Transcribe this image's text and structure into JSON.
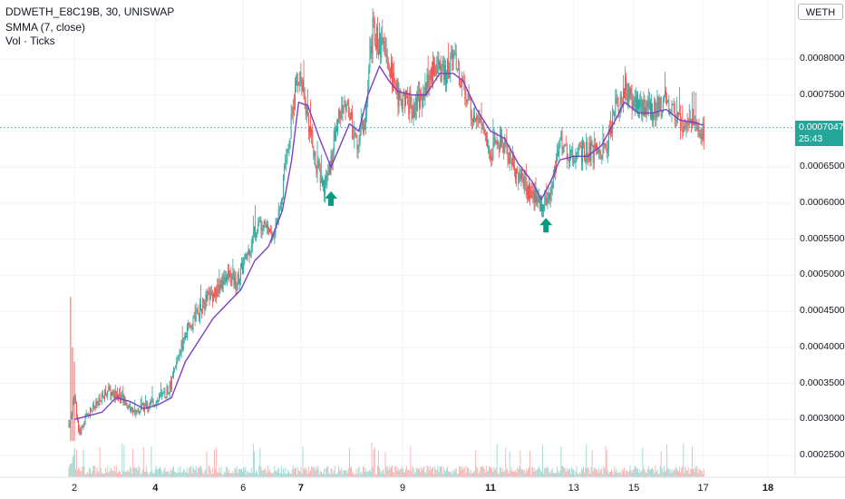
{
  "header": {
    "symbol_line": "DDWETH_E8C19B, 30, UNISWAP",
    "indicator_line": "SMMA (7, close)",
    "volume_line": "Vol · Ticks"
  },
  "currency_button": "WETH",
  "last_price": {
    "value": "0.0007047",
    "countdown": "25:43"
  },
  "colors": {
    "up": "#26a69a",
    "down": "#ef5350",
    "smma": "#7b3fc4",
    "arrow": "#089981",
    "grid": "#f0f3fa"
  },
  "icons": [
    "up-arrow-icon",
    "up-arrow-icon"
  ],
  "y_axis_labels": [
    "0.0008000",
    "0.0007500",
    "0.0006500",
    "0.0006000",
    "0.0005500",
    "0.0005000",
    "0.0004500",
    "0.0004000",
    "0.0003500",
    "0.0003000",
    "0.0002500"
  ],
  "x_axis_labels": [
    {
      "text": "2",
      "bold": false
    },
    {
      "text": "4",
      "bold": true
    },
    {
      "text": "6",
      "bold": false
    },
    {
      "text": "7",
      "bold": true
    },
    {
      "text": "9",
      "bold": false
    },
    {
      "text": "11",
      "bold": true
    },
    {
      "text": "13",
      "bold": false
    },
    {
      "text": "15",
      "bold": false
    },
    {
      "text": "17",
      "bold": false
    },
    {
      "text": "18",
      "bold": true
    }
  ],
  "chart_data": {
    "type": "candlestick",
    "ylim": [
      0.00022,
      0.00086
    ],
    "xlim": [
      1.6,
      18.9
    ],
    "series_points": [
      [
        1.9,
        0.00029
      ],
      [
        2.0,
        0.00034
      ],
      [
        2.1,
        0.00028
      ],
      [
        2.3,
        0.00031
      ],
      [
        2.5,
        0.00032
      ],
      [
        2.7,
        0.00034
      ],
      [
        3.0,
        0.00033
      ],
      [
        3.3,
        0.00031
      ],
      [
        3.6,
        0.00032
      ],
      [
        3.9,
        0.00033
      ],
      [
        4.1,
        0.00035
      ],
      [
        4.3,
        0.0004
      ],
      [
        4.5,
        0.00043
      ],
      [
        4.7,
        0.00045
      ],
      [
        4.9,
        0.00047
      ],
      [
        5.1,
        0.00048
      ],
      [
        5.3,
        0.0005
      ],
      [
        5.5,
        0.00049
      ],
      [
        5.7,
        0.00052
      ],
      [
        5.9,
        0.00056
      ],
      [
        6.1,
        0.00058
      ],
      [
        6.3,
        0.00055
      ],
      [
        6.5,
        0.00062
      ],
      [
        6.7,
        0.00072
      ],
      [
        6.85,
        0.00078
      ],
      [
        7.0,
        0.00074
      ],
      [
        7.2,
        0.00066
      ],
      [
        7.4,
        0.00062
      ],
      [
        7.55,
        0.00066
      ],
      [
        7.7,
        0.00072
      ],
      [
        7.9,
        0.00074
      ],
      [
        8.1,
        0.00068
      ],
      [
        8.3,
        0.00072
      ],
      [
        8.45,
        0.00084
      ],
      [
        8.6,
        0.00082
      ],
      [
        8.8,
        0.00079
      ],
      [
        9.0,
        0.00075
      ],
      [
        9.2,
        0.00074
      ],
      [
        9.4,
        0.00073
      ],
      [
        9.6,
        0.00076
      ],
      [
        9.8,
        0.00079
      ],
      [
        10.0,
        0.00078
      ],
      [
        10.2,
        0.0008
      ],
      [
        10.4,
        0.00076
      ],
      [
        10.6,
        0.00073
      ],
      [
        10.8,
        0.00071
      ],
      [
        11.0,
        0.00067
      ],
      [
        11.2,
        0.00069
      ],
      [
        11.5,
        0.00065
      ],
      [
        11.7,
        0.00063
      ],
      [
        11.9,
        0.00061
      ],
      [
        12.1,
        0.0006
      ],
      [
        12.3,
        0.00061
      ],
      [
        12.5,
        0.00069
      ],
      [
        12.7,
        0.00066
      ],
      [
        12.9,
        0.00067
      ],
      [
        13.2,
        0.00067
      ],
      [
        13.5,
        0.00068
      ],
      [
        13.7,
        0.00073
      ],
      [
        13.9,
        0.00076
      ],
      [
        14.1,
        0.00074
      ],
      [
        14.3,
        0.00073
      ],
      [
        14.5,
        0.00073
      ],
      [
        14.8,
        0.00074
      ],
      [
        15.0,
        0.00072
      ],
      [
        15.2,
        0.00071
      ],
      [
        15.4,
        0.00071
      ],
      [
        15.6,
        0.0007
      ]
    ],
    "smma_points": [
      [
        2.0,
        0.0003
      ],
      [
        2.3,
        0.000305
      ],
      [
        2.6,
        0.00031
      ],
      [
        2.9,
        0.00033
      ],
      [
        3.2,
        0.000325
      ],
      [
        3.5,
        0.000315
      ],
      [
        3.8,
        0.00032
      ],
      [
        4.1,
        0.00033
      ],
      [
        4.4,
        0.00038
      ],
      [
        4.7,
        0.00041
      ],
      [
        5.0,
        0.00044
      ],
      [
        5.3,
        0.00046
      ],
      [
        5.6,
        0.00048
      ],
      [
        5.9,
        0.00052
      ],
      [
        6.2,
        0.00054
      ],
      [
        6.5,
        0.00059
      ],
      [
        6.7,
        0.00066
      ],
      [
        6.85,
        0.00074
      ],
      [
        7.05,
        0.000735
      ],
      [
        7.3,
        0.00069
      ],
      [
        7.55,
        0.00065
      ],
      [
        7.75,
        0.00068
      ],
      [
        7.95,
        0.00071
      ],
      [
        8.15,
        0.0007
      ],
      [
        8.35,
        0.00075
      ],
      [
        8.6,
        0.00079
      ],
      [
        8.8,
        0.00077
      ],
      [
        9.0,
        0.000755
      ],
      [
        9.3,
        0.00075
      ],
      [
        9.6,
        0.00075
      ],
      [
        9.9,
        0.00078
      ],
      [
        10.2,
        0.00078
      ],
      [
        10.4,
        0.00077
      ],
      [
        10.7,
        0.00073
      ],
      [
        11.0,
        0.0007
      ],
      [
        11.3,
        0.00069
      ],
      [
        11.6,
        0.000655
      ],
      [
        11.9,
        0.00063
      ],
      [
        12.1,
        0.000605
      ],
      [
        12.3,
        0.00063
      ],
      [
        12.5,
        0.00066
      ],
      [
        12.8,
        0.000665
      ],
      [
        13.1,
        0.000665
      ],
      [
        13.4,
        0.00068
      ],
      [
        13.7,
        0.000715
      ],
      [
        13.9,
        0.00074
      ],
      [
        14.2,
        0.000725
      ],
      [
        14.5,
        0.000725
      ],
      [
        14.8,
        0.00073
      ],
      [
        15.1,
        0.000715
      ],
      [
        15.4,
        0.000712
      ],
      [
        15.6,
        0.000708
      ]
    ],
    "annotations": [
      {
        "type": "buy-arrow",
        "x": 7.55,
        "y": 0.000624
      },
      {
        "type": "buy-arrow",
        "x": 12.2,
        "y": 0.000587
      }
    ],
    "last_price": 0.0007047
  }
}
